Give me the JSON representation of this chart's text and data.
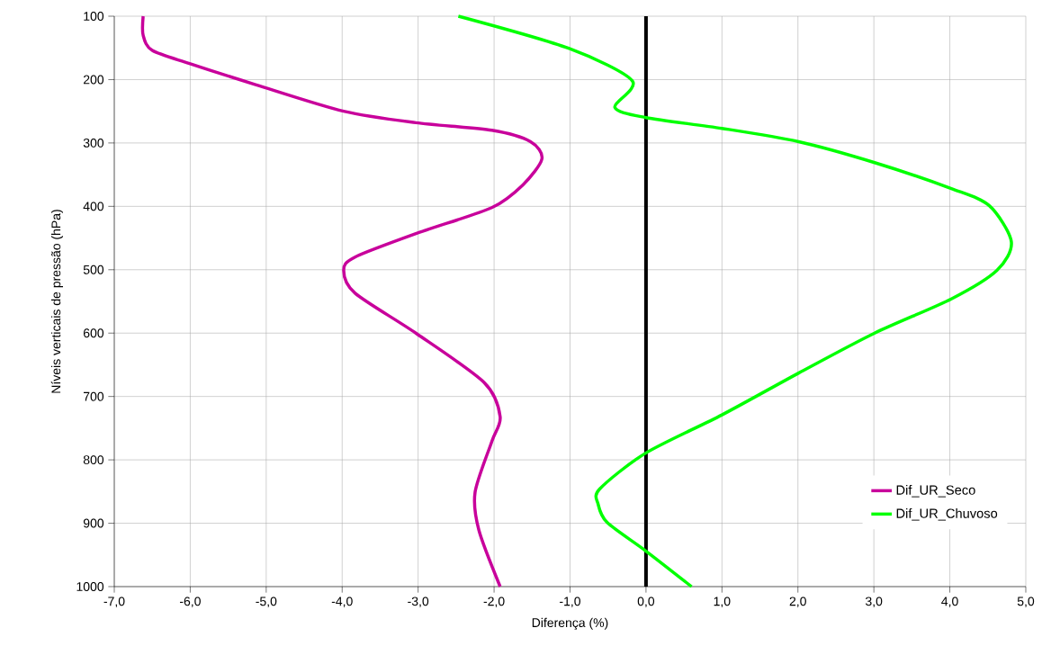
{
  "chart_data": {
    "type": "line",
    "xlabel": "Diferença (%)",
    "ylabel": "Níveis verticais de pressão (hPa)",
    "xlim": [
      -7,
      5
    ],
    "ylim": [
      1000,
      100
    ],
    "xticks": [
      {
        "value": -7,
        "label": "-7,0"
      },
      {
        "value": -6,
        "label": "-6,0"
      },
      {
        "value": -5,
        "label": "-5,0"
      },
      {
        "value": -4,
        "label": "-4,0"
      },
      {
        "value": -3,
        "label": "-3,0"
      },
      {
        "value": -2,
        "label": "-2,0"
      },
      {
        "value": -1,
        "label": "-1,0"
      },
      {
        "value": 0,
        "label": "0,0"
      },
      {
        "value": 1,
        "label": "1,0"
      },
      {
        "value": 2,
        "label": "2,0"
      },
      {
        "value": 3,
        "label": "3,0"
      },
      {
        "value": 4,
        "label": "4,0"
      },
      {
        "value": 5,
        "label": "5,0"
      }
    ],
    "yticks": [
      100,
      200,
      300,
      400,
      500,
      600,
      700,
      800,
      900,
      1000
    ],
    "grid": true,
    "legend": "bottom right",
    "ref_lines": [
      {
        "axis": "x",
        "value": 0,
        "color": "#000000"
      }
    ],
    "series": [
      {
        "name": "Dif_UR_Seco",
        "color": "#c8009b",
        "x": [
          -6.62,
          -6.62,
          -6.5,
          -6.0,
          -5.14,
          -3.98,
          -3.03,
          -2.03,
          -1.52,
          -1.37,
          -1.62,
          -2.03,
          -2.98,
          -3.83,
          -3.98,
          -3.83,
          -3.03,
          -2.13,
          -1.92,
          -2.03,
          -2.25,
          -2.2,
          -1.92
        ],
        "values": [
          100,
          130,
          154,
          175,
          208,
          250,
          268,
          280,
          298,
          325,
          366,
          402,
          441,
          480,
          501,
          537,
          600,
          678,
          732,
          771,
          851,
          911,
          1000
        ]
      },
      {
        "name": "Dif_UR_Chuvoso",
        "color": "#00ff00",
        "x": [
          -2.47,
          -1.01,
          -0.18,
          -0.41,
          0,
          1.0,
          2.01,
          3.01,
          4.02,
          4.52,
          4.81,
          4.62,
          4.02,
          3.01,
          2.01,
          1.0,
          0,
          -0.61,
          -0.63,
          -0.51,
          0,
          0.6
        ],
        "values": [
          100,
          151,
          202,
          244,
          260,
          277,
          298,
          331,
          372,
          399,
          456,
          501,
          546,
          600,
          663,
          729,
          789,
          846,
          870,
          899,
          944,
          1000
        ]
      }
    ]
  }
}
